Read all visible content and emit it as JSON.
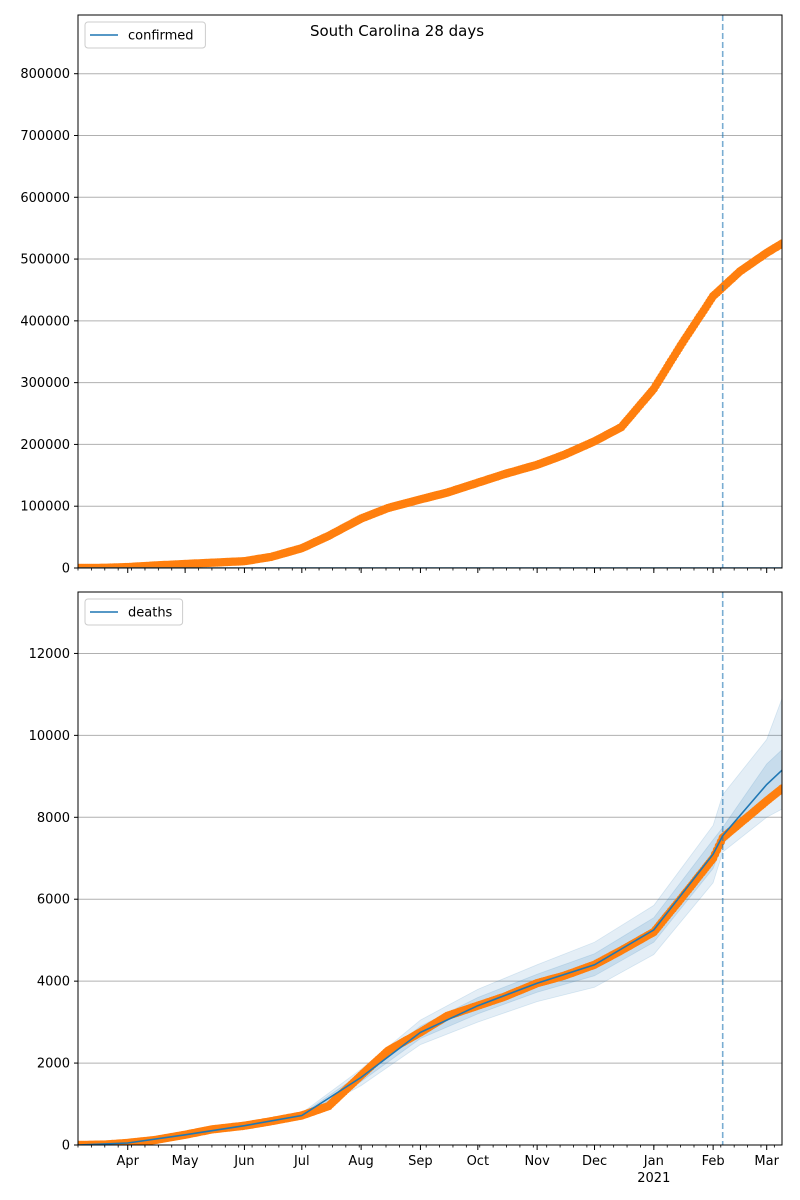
{
  "figure": {
    "title": "South Carolina 28 days"
  },
  "colors": {
    "observed": "#ff7f0e",
    "model": "#1f77b4",
    "band": "#1f77b4",
    "cutoff": "#1f77b4",
    "grid": "#b0b0b0"
  },
  "x_axis": {
    "ticks": [
      {
        "date": "2020-04-01",
        "label": "Apr"
      },
      {
        "date": "2020-05-01",
        "label": "May"
      },
      {
        "date": "2020-06-01",
        "label": "Jun"
      },
      {
        "date": "2020-07-01",
        "label": "Jul"
      },
      {
        "date": "2020-08-01",
        "label": "Aug"
      },
      {
        "date": "2020-09-01",
        "label": "Sep"
      },
      {
        "date": "2020-10-01",
        "label": "Oct"
      },
      {
        "date": "2020-11-01",
        "label": "Nov"
      },
      {
        "date": "2020-12-01",
        "label": "Dec"
      },
      {
        "date": "2021-01-01",
        "label": "Jan",
        "sublabel": "2021"
      },
      {
        "date": "2021-02-01",
        "label": "Feb"
      },
      {
        "date": "2021-03-01",
        "label": "Mar"
      }
    ],
    "range": [
      "2020-03-06",
      "2021-03-09"
    ],
    "forecast_start": "2021-02-06"
  },
  "chart_data": [
    {
      "type": "line",
      "title": "South Carolina 28 days",
      "legend": [
        "confirmed"
      ],
      "legend_position": "top-left",
      "grid": "horizontal",
      "ylim": [
        0,
        895000
      ],
      "yticks": [
        0,
        100000,
        200000,
        300000,
        400000,
        500000,
        600000,
        700000,
        800000
      ],
      "forecast_start": "2021-02-06",
      "observed": {
        "x": [
          "2020-03-06",
          "2020-03-20",
          "2020-04-01",
          "2020-04-15",
          "2020-05-01",
          "2020-05-15",
          "2020-06-01",
          "2020-06-15",
          "2020-07-01",
          "2020-07-15",
          "2020-08-01",
          "2020-08-15",
          "2020-09-01",
          "2020-09-15",
          "2020-10-01",
          "2020-10-15",
          "2020-11-01",
          "2020-11-15",
          "2020-12-01",
          "2020-12-15",
          "2021-01-01",
          "2021-01-15",
          "2021-02-01",
          "2021-02-15",
          "2021-03-01",
          "2021-03-09"
        ],
        "y": [
          0,
          300,
          1500,
          4000,
          6500,
          8500,
          11000,
          18000,
          32000,
          52000,
          80000,
          97000,
          111000,
          122000,
          138000,
          152000,
          167000,
          183000,
          205000,
          228000,
          290000,
          360000,
          440000,
          480000,
          510000,
          525000
        ]
      },
      "model": {
        "x": [
          "2020-03-06",
          "2021-03-09"
        ],
        "y": [
          0,
          0
        ]
      }
    },
    {
      "type": "line",
      "legend": [
        "deaths"
      ],
      "legend_position": "top-left",
      "grid": "horizontal",
      "ylim": [
        0,
        13500
      ],
      "yticks": [
        0,
        2000,
        4000,
        6000,
        8000,
        10000,
        12000
      ],
      "forecast_start": "2021-02-06",
      "observed": {
        "x": [
          "2020-03-06",
          "2020-03-20",
          "2020-04-01",
          "2020-04-15",
          "2020-05-01",
          "2020-05-15",
          "2020-06-01",
          "2020-06-15",
          "2020-07-01",
          "2020-07-15",
          "2020-08-01",
          "2020-08-15",
          "2020-09-01",
          "2020-09-15",
          "2020-10-01",
          "2020-10-15",
          "2020-11-01",
          "2020-11-15",
          "2020-12-01",
          "2020-12-15",
          "2021-01-01",
          "2021-01-15",
          "2021-02-01",
          "2021-02-06",
          "2021-02-15",
          "2021-03-01",
          "2021-03-09"
        ],
        "y": [
          0,
          10,
          50,
          120,
          250,
          380,
          470,
          580,
          720,
          950,
          1700,
          2300,
          2750,
          3150,
          3400,
          3620,
          3950,
          4130,
          4400,
          4750,
          5200,
          6000,
          7000,
          7500,
          7850,
          8400,
          8700
        ]
      },
      "model": {
        "x": [
          "2020-03-06",
          "2020-04-01",
          "2020-05-01",
          "2020-06-01",
          "2020-07-01",
          "2020-08-01",
          "2020-09-01",
          "2020-10-01",
          "2020-11-01",
          "2020-12-01",
          "2021-01-01",
          "2021-02-01",
          "2021-02-06",
          "2021-03-01",
          "2021-03-09"
        ],
        "y": [
          0,
          50,
          250,
          470,
          720,
          1650,
          2750,
          3400,
          3950,
          4400,
          5250,
          7100,
          7550,
          8800,
          9150
        ]
      },
      "band_outer": {
        "x": [
          "2020-03-06",
          "2020-04-01",
          "2020-05-01",
          "2020-06-01",
          "2020-07-01",
          "2020-08-01",
          "2020-09-01",
          "2020-10-01",
          "2020-11-01",
          "2020-12-01",
          "2021-01-01",
          "2021-02-01",
          "2021-02-06",
          "2021-03-01",
          "2021-03-09"
        ],
        "lower": [
          0,
          40,
          220,
          430,
          660,
          1450,
          2450,
          3000,
          3500,
          3850,
          4650,
          6400,
          7150,
          8000,
          8200
        ],
        "upper": [
          0,
          60,
          280,
          510,
          780,
          1850,
          3050,
          3800,
          4400,
          4950,
          5850,
          7800,
          8550,
          9900,
          10900
        ]
      },
      "band_inner": {
        "x": [
          "2020-03-06",
          "2020-04-01",
          "2020-05-01",
          "2020-06-01",
          "2020-07-01",
          "2020-08-01",
          "2020-09-01",
          "2020-10-01",
          "2020-11-01",
          "2020-12-01",
          "2021-01-01",
          "2021-02-01",
          "2021-02-06",
          "2021-03-01",
          "2021-03-09"
        ],
        "lower": [
          0,
          45,
          235,
          450,
          690,
          1550,
          2600,
          3200,
          3730,
          4130,
          4950,
          6750,
          7350,
          8400,
          8650
        ],
        "upper": [
          0,
          55,
          265,
          490,
          750,
          1750,
          2900,
          3600,
          4170,
          4670,
          5550,
          7450,
          7750,
          9300,
          9650
        ]
      }
    }
  ]
}
